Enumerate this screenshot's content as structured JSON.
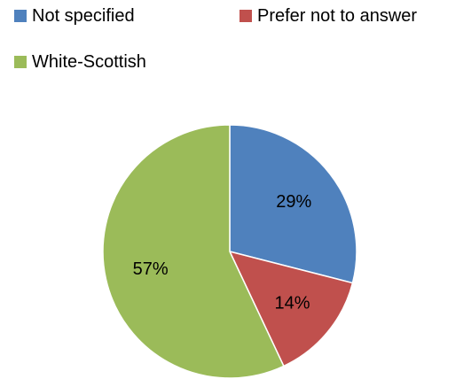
{
  "chart_data": {
    "type": "pie",
    "title": "",
    "legend_position": "top",
    "slices": [
      {
        "name": "Not specified",
        "value": 29,
        "label": "29%",
        "color": "#4f81bd"
      },
      {
        "name": "Prefer not to answer",
        "value": 14,
        "label": "14%",
        "color": "#c0504d"
      },
      {
        "name": "White-Scottish",
        "value": 57,
        "label": "57%",
        "color": "#9bbb59"
      }
    ]
  }
}
